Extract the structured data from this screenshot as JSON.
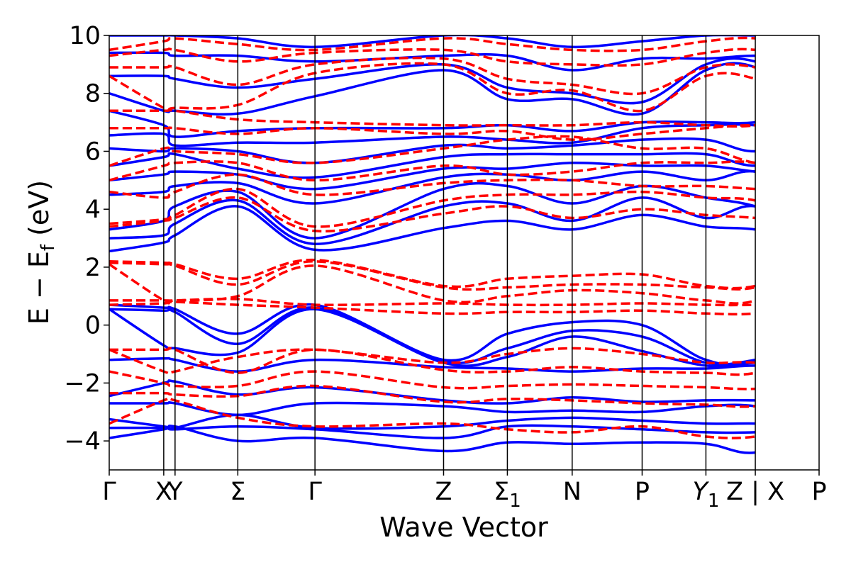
{
  "chart_data": {
    "type": "line",
    "title": "",
    "xlabel": "Wave Vector",
    "ylabel_main": "E − E",
    "ylabel_sub": "f",
    "ylabel_unit": " (eV)",
    "ylim": [
      -5,
      10
    ],
    "yticks": [
      {
        "value": -4,
        "label": "−4"
      },
      {
        "value": -2,
        "label": "−2"
      },
      {
        "value": 0,
        "label": "0"
      },
      {
        "value": 2,
        "label": "2"
      },
      {
        "value": 4,
        "label": "4"
      },
      {
        "value": 6,
        "label": "6"
      },
      {
        "value": 8,
        "label": "8"
      },
      {
        "value": 10,
        "label": "10"
      }
    ],
    "xlim": [
      0,
      6.9
    ],
    "kpoints": [
      {
        "x": 0.0,
        "label": "Γ"
      },
      {
        "x": 0.53,
        "label": "X"
      },
      {
        "x": 0.64,
        "label": "Y"
      },
      {
        "x": 1.25,
        "label": "Σ"
      },
      {
        "x": 2.0,
        "label": "Γ"
      },
      {
        "x": 3.25,
        "label": "Z"
      },
      {
        "x": 3.87,
        "label": "Σ",
        "sub": "1"
      },
      {
        "x": 4.5,
        "label": "N"
      },
      {
        "x": 5.18,
        "label": "P"
      },
      {
        "x": 5.8,
        "label": "Y",
        "sub": "1",
        "italic": true
      },
      {
        "x": 6.28,
        "label": "Z | X"
      },
      {
        "x": 6.9,
        "label": "P"
      }
    ],
    "series": [
      {
        "style": "solid",
        "color": "#0000ff",
        "bands": [
          [
            -3.9,
            -3.6,
            -3.5,
            -4.0,
            -3.9,
            -4.35,
            -4.05,
            -4.1,
            -4.05,
            -4.1,
            -4.4,
            -3.6,
            -3.9
          ],
          [
            -3.55,
            -3.55,
            -3.6,
            -3.5,
            -3.6,
            -3.9,
            -3.5,
            -3.5,
            -3.6,
            -3.7,
            -3.7,
            -3.55,
            -3.6
          ],
          [
            -3.25,
            -3.5,
            -3.55,
            -3.1,
            -3.55,
            -3.5,
            -3.3,
            -3.2,
            -3.3,
            -3.4,
            -3.4,
            -3.45,
            -3.2
          ],
          [
            -2.7,
            -2.7,
            -2.7,
            -3.1,
            -2.7,
            -2.8,
            -3.0,
            -2.95,
            -3.0,
            -2.8,
            -2.8,
            -3.3,
            -3.0
          ],
          [
            -2.45,
            -2.0,
            -1.95,
            -2.4,
            -2.15,
            -2.6,
            -2.7,
            -2.5,
            -2.65,
            -2.6,
            -2.6,
            -2.7,
            -2.3
          ],
          [
            -1.2,
            -1.15,
            -1.2,
            -1.6,
            -1.2,
            -1.45,
            -1.5,
            -1.6,
            -1.5,
            -1.5,
            -1.4,
            -1.5,
            -2.0
          ],
          [
            0.55,
            -0.7,
            -0.8,
            -0.95,
            0.55,
            -1.3,
            -1.1,
            -0.4,
            -0.9,
            -1.4,
            -1.3,
            -1.1,
            -1.5
          ],
          [
            0.55,
            0.5,
            0.45,
            -0.65,
            0.6,
            -1.25,
            -0.8,
            -0.2,
            -0.4,
            -1.3,
            -1.2,
            -0.65,
            -1.3
          ],
          [
            0.7,
            0.6,
            0.55,
            -0.3,
            0.7,
            -1.2,
            -0.3,
            0.1,
            0.0,
            -1.2,
            -1.2,
            0.55,
            -0.9
          ],
          [
            2.55,
            2.85,
            3.1,
            4.1,
            2.6,
            3.35,
            3.6,
            3.3,
            3.8,
            3.4,
            3.3,
            2.85,
            3.9
          ],
          [
            3.0,
            3.1,
            3.5,
            4.3,
            2.8,
            4.1,
            4.2,
            3.6,
            4.4,
            3.7,
            4.1,
            3.1,
            3.9
          ],
          [
            3.3,
            3.6,
            4.1,
            4.6,
            3.0,
            4.7,
            4.8,
            4.2,
            4.8,
            4.4,
            4.1,
            3.3,
            4.3
          ],
          [
            4.5,
            4.6,
            4.8,
            4.9,
            4.2,
            5.1,
            5.2,
            5.0,
            5.3,
            5.0,
            5.3,
            4.5,
            5.5
          ],
          [
            5.0,
            5.2,
            5.3,
            5.2,
            4.7,
            5.4,
            5.4,
            5.6,
            5.5,
            5.5,
            5.3,
            5.1,
            5.8
          ],
          [
            5.5,
            5.8,
            5.9,
            5.4,
            5.1,
            5.8,
            5.9,
            5.9,
            5.9,
            5.9,
            5.5,
            5.9,
            6.3
          ],
          [
            6.1,
            6.0,
            6.1,
            6.0,
            5.6,
            6.2,
            6.1,
            6.2,
            6.4,
            6.4,
            6.0,
            6.5,
            6.6
          ],
          [
            6.55,
            6.6,
            6.2,
            6.3,
            6.3,
            6.5,
            6.4,
            6.3,
            6.8,
            6.9,
            6.9,
            6.6,
            6.7
          ],
          [
            7.4,
            6.9,
            6.5,
            6.7,
            6.8,
            6.8,
            6.9,
            6.7,
            7.0,
            7.0,
            7.0,
            7.4,
            6.8
          ],
          [
            8.0,
            7.4,
            7.4,
            7.3,
            7.9,
            8.8,
            7.8,
            7.8,
            7.3,
            8.8,
            8.9,
            7.4,
            7.5
          ],
          [
            8.6,
            8.6,
            8.5,
            8.2,
            8.5,
            9.0,
            8.2,
            8.0,
            7.7,
            9.0,
            9.1,
            8.0,
            8.6
          ],
          [
            9.4,
            9.4,
            9.3,
            9.3,
            9.1,
            9.3,
            9.3,
            8.8,
            9.2,
            9.2,
            9.3,
            9.2,
            9.0
          ],
          [
            10.0,
            10.0,
            10.0,
            9.9,
            9.6,
            10.0,
            9.9,
            9.6,
            9.8,
            10.0,
            10.0,
            10.0,
            10.0
          ]
        ]
      },
      {
        "style": "dashed",
        "color": "#ff0000",
        "bands": [
          [
            -3.4,
            -2.6,
            -2.6,
            -3.2,
            -3.5,
            -3.4,
            -3.6,
            -3.7,
            -3.5,
            -3.85,
            -3.85,
            -3.4,
            -3.6
          ],
          [
            -2.35,
            -2.35,
            -2.4,
            -2.45,
            -2.1,
            -2.65,
            -2.55,
            -2.6,
            -2.7,
            -2.75,
            -2.8,
            -2.4,
            -2.85
          ],
          [
            -1.6,
            -2.0,
            -2.1,
            -2.1,
            -1.6,
            -2.15,
            -2.1,
            -2.05,
            -2.1,
            -2.15,
            -2.2,
            -2.0,
            -2.2
          ],
          [
            -0.85,
            -0.85,
            -0.85,
            -1.65,
            -0.85,
            -1.55,
            -1.6,
            -1.45,
            -1.6,
            -1.65,
            -1.65,
            -0.85,
            -1.6
          ],
          [
            -0.85,
            -1.6,
            -1.6,
            -1.1,
            -0.85,
            -1.3,
            -1.0,
            -0.8,
            -1.0,
            -1.3,
            -1.3,
            -1.7,
            -1.0
          ],
          [
            0.7,
            0.75,
            0.8,
            0.7,
            0.6,
            0.4,
            0.45,
            0.45,
            0.5,
            0.4,
            0.4,
            0.7,
            0.6
          ],
          [
            0.85,
            0.85,
            0.85,
            0.9,
            0.7,
            0.75,
            0.7,
            0.7,
            0.75,
            0.7,
            0.7,
            0.8,
            0.8
          ],
          [
            2.1,
            0.85,
            0.85,
            1.0,
            2.05,
            0.85,
            1.0,
            1.2,
            1.1,
            0.85,
            0.85,
            2.1,
            1.1
          ],
          [
            2.15,
            2.1,
            2.05,
            1.4,
            2.2,
            1.3,
            1.3,
            1.4,
            1.4,
            1.3,
            1.3,
            2.1,
            1.4
          ],
          [
            2.2,
            2.15,
            2.1,
            1.6,
            2.25,
            1.35,
            1.6,
            1.7,
            1.75,
            1.35,
            1.35,
            2.15,
            1.8
          ],
          [
            3.4,
            3.6,
            3.7,
            4.4,
            3.25,
            3.85,
            4.1,
            3.7,
            4.0,
            3.8,
            3.7,
            3.5,
            4.3
          ],
          [
            3.5,
            3.65,
            3.8,
            4.7,
            3.4,
            4.3,
            4.5,
            4.5,
            4.6,
            4.4,
            4.3,
            3.6,
            4.6
          ],
          [
            4.6,
            4.4,
            4.6,
            5.2,
            4.5,
            4.9,
            5.0,
            5.0,
            4.8,
            4.8,
            4.7,
            4.6,
            4.8
          ],
          [
            5.0,
            5.5,
            5.6,
            5.6,
            5.0,
            5.5,
            5.2,
            5.3,
            5.6,
            5.6,
            5.6,
            5.0,
            5.4
          ],
          [
            5.5,
            6.1,
            6.0,
            5.9,
            5.6,
            6.1,
            6.4,
            6.5,
            6.1,
            6.1,
            5.6,
            5.5,
            5.8
          ],
          [
            6.8,
            6.8,
            6.8,
            6.6,
            6.8,
            6.6,
            6.7,
            6.4,
            6.6,
            6.8,
            6.9,
            6.8,
            6.6
          ],
          [
            7.4,
            7.4,
            7.4,
            7.1,
            7.0,
            6.9,
            6.9,
            6.9,
            7.0,
            6.9,
            6.9,
            7.4,
            6.8
          ],
          [
            8.6,
            7.5,
            7.5,
            7.6,
            8.7,
            9.0,
            8.0,
            8.1,
            7.4,
            8.6,
            8.5,
            7.5,
            7.8
          ],
          [
            8.9,
            8.9,
            8.9,
            8.3,
            9.0,
            9.2,
            8.5,
            8.3,
            8.0,
            8.9,
            8.9,
            8.2,
            8.3
          ],
          [
            9.3,
            9.5,
            9.5,
            9.1,
            9.4,
            9.5,
            9.1,
            9.0,
            9.0,
            9.4,
            9.5,
            9.0,
            9.0
          ],
          [
            9.5,
            9.8,
            9.9,
            9.7,
            9.5,
            9.9,
            9.7,
            9.5,
            9.5,
            9.8,
            9.9,
            9.5,
            9.5
          ]
        ]
      }
    ]
  }
}
